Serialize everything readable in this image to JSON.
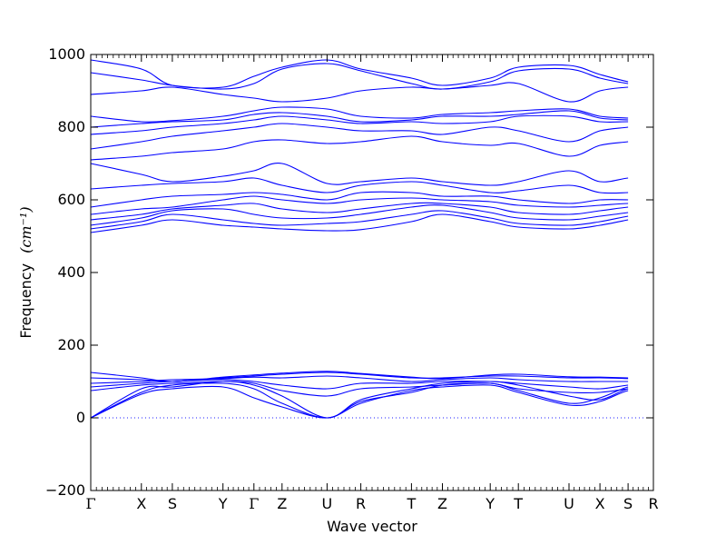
{
  "chart_data": {
    "type": "line",
    "title": "",
    "xlabel": "Wave vector",
    "ylabel": "Frequency",
    "ylabel_unit_symbol": "(cm⁻¹)",
    "ylim": [
      -200,
      1000
    ],
    "yticks": [
      -200,
      0,
      200,
      400,
      600,
      800,
      1000
    ],
    "xticks": [
      {
        "label": "Γ",
        "pos": 0.0
      },
      {
        "label": "X",
        "pos": 0.09
      },
      {
        "label": "S",
        "pos": 0.145
      },
      {
        "label": "Y",
        "pos": 0.235
      },
      {
        "label": "Γ",
        "pos": 0.29
      },
      {
        "label": "Z",
        "pos": 0.34
      },
      {
        "label": "U",
        "pos": 0.42
      },
      {
        "label": "R",
        "pos": 0.48
      },
      {
        "label": "T",
        "pos": 0.57
      },
      {
        "label": "Z",
        "pos": 0.625
      },
      {
        "label": "Y",
        "pos": 0.71
      },
      {
        "label": "T",
        "pos": 0.76
      },
      {
        "label": "U",
        "pos": 0.85
      },
      {
        "label": "X",
        "pos": 0.905
      },
      {
        "label": "S",
        "pos": 0.955
      },
      {
        "label": "R",
        "pos": 1.0
      }
    ],
    "zero_line": {
      "y": 0,
      "style": "dotted",
      "color": "#1f1fff"
    },
    "line_color": "#0000ff",
    "grid": false,
    "legend": "none",
    "series": [
      {
        "values": [
          0,
          80,
          85,
          100,
          90,
          60,
          0,
          50,
          80,
          95,
          100,
          90,
          60,
          50,
          80,
          85,
          95
        ]
      },
      {
        "values": [
          0,
          70,
          90,
          95,
          80,
          40,
          0,
          45,
          70,
          90,
          95,
          75,
          40,
          55,
          85,
          90,
          100
        ]
      },
      {
        "values": [
          0,
          65,
          80,
          85,
          55,
          30,
          0,
          40,
          75,
          85,
          90,
          70,
          35,
          45,
          75,
          80,
          82
        ]
      },
      {
        "values": [
          75,
          90,
          95,
          100,
          95,
          75,
          60,
          80,
          85,
          90,
          95,
          80,
          70,
          70,
          80,
          90,
          90
        ]
      },
      {
        "values": [
          85,
          95,
          100,
          105,
          100,
          90,
          80,
          95,
          95,
          100,
          100,
          95,
          85,
          80,
          90,
          95,
          95
        ]
      },
      {
        "values": [
          95,
          100,
          105,
          108,
          112,
          110,
          115,
          110,
          100,
          105,
          110,
          105,
          100,
          100,
          100,
          100,
          100
        ]
      },
      {
        "values": [
          110,
          105,
          100,
          110,
          115,
          120,
          125,
          120,
          110,
          110,
          115,
          115,
          110,
          110,
          108,
          105,
          100
        ]
      },
      {
        "values": [
          125,
          110,
          100,
          112,
          118,
          123,
          128,
          122,
          112,
          108,
          118,
          120,
          113,
          112,
          110,
          108,
          102
        ]
      },
      {
        "values": [
          510,
          530,
          545,
          530,
          525,
          520,
          515,
          518,
          540,
          560,
          540,
          525,
          520,
          530,
          545,
          560,
          565
        ]
      },
      {
        "values": [
          520,
          540,
          560,
          545,
          535,
          530,
          535,
          540,
          560,
          570,
          550,
          535,
          530,
          540,
          555,
          565,
          570
        ]
      },
      {
        "values": [
          530,
          550,
          570,
          575,
          560,
          550,
          550,
          560,
          580,
          585,
          565,
          550,
          545,
          555,
          565,
          575,
          575
        ]
      },
      {
        "values": [
          545,
          560,
          575,
          585,
          590,
          575,
          565,
          575,
          590,
          590,
          580,
          565,
          560,
          570,
          580,
          585,
          580
        ]
      },
      {
        "values": [
          560,
          575,
          580,
          600,
          610,
          600,
          590,
          600,
          605,
          600,
          595,
          585,
          580,
          585,
          590,
          590,
          590
        ]
      },
      {
        "values": [
          580,
          600,
          610,
          615,
          620,
          615,
          600,
          620,
          620,
          610,
          610,
          600,
          590,
          600,
          600,
          595,
          590
        ]
      },
      {
        "values": [
          630,
          640,
          645,
          650,
          660,
          640,
          620,
          640,
          650,
          640,
          620,
          625,
          640,
          620,
          620,
          625,
          630
        ]
      },
      {
        "values": [
          700,
          670,
          650,
          665,
          680,
          700,
          645,
          650,
          660,
          650,
          640,
          650,
          680,
          650,
          660,
          665,
          645
        ]
      },
      {
        "values": [
          710,
          720,
          730,
          740,
          760,
          765,
          755,
          760,
          775,
          760,
          750,
          755,
          720,
          750,
          760,
          770,
          760
        ]
      },
      {
        "values": [
          740,
          760,
          775,
          790,
          800,
          810,
          800,
          790,
          790,
          780,
          800,
          790,
          760,
          790,
          800,
          810,
          815
        ]
      },
      {
        "values": [
          780,
          790,
          800,
          810,
          820,
          830,
          820,
          810,
          815,
          810,
          815,
          830,
          830,
          815,
          815,
          815,
          815
        ]
      },
      {
        "values": [
          800,
          810,
          815,
          820,
          835,
          840,
          830,
          815,
          820,
          830,
          830,
          835,
          845,
          825,
          820,
          818,
          815
        ]
      },
      {
        "values": [
          830,
          815,
          818,
          830,
          845,
          855,
          850,
          830,
          825,
          835,
          840,
          845,
          850,
          830,
          825,
          820,
          818
        ]
      },
      {
        "values": [
          890,
          900,
          910,
          890,
          880,
          870,
          880,
          900,
          910,
          905,
          915,
          920,
          870,
          900,
          910,
          910,
          910
        ]
      },
      {
        "values": [
          950,
          930,
          915,
          905,
          920,
          960,
          975,
          955,
          920,
          905,
          925,
          955,
          960,
          935,
          920,
          912,
          910
        ]
      },
      {
        "values": [
          985,
          960,
          915,
          910,
          940,
          965,
          985,
          960,
          935,
          915,
          935,
          965,
          970,
          945,
          925,
          914,
          912
        ]
      }
    ]
  }
}
